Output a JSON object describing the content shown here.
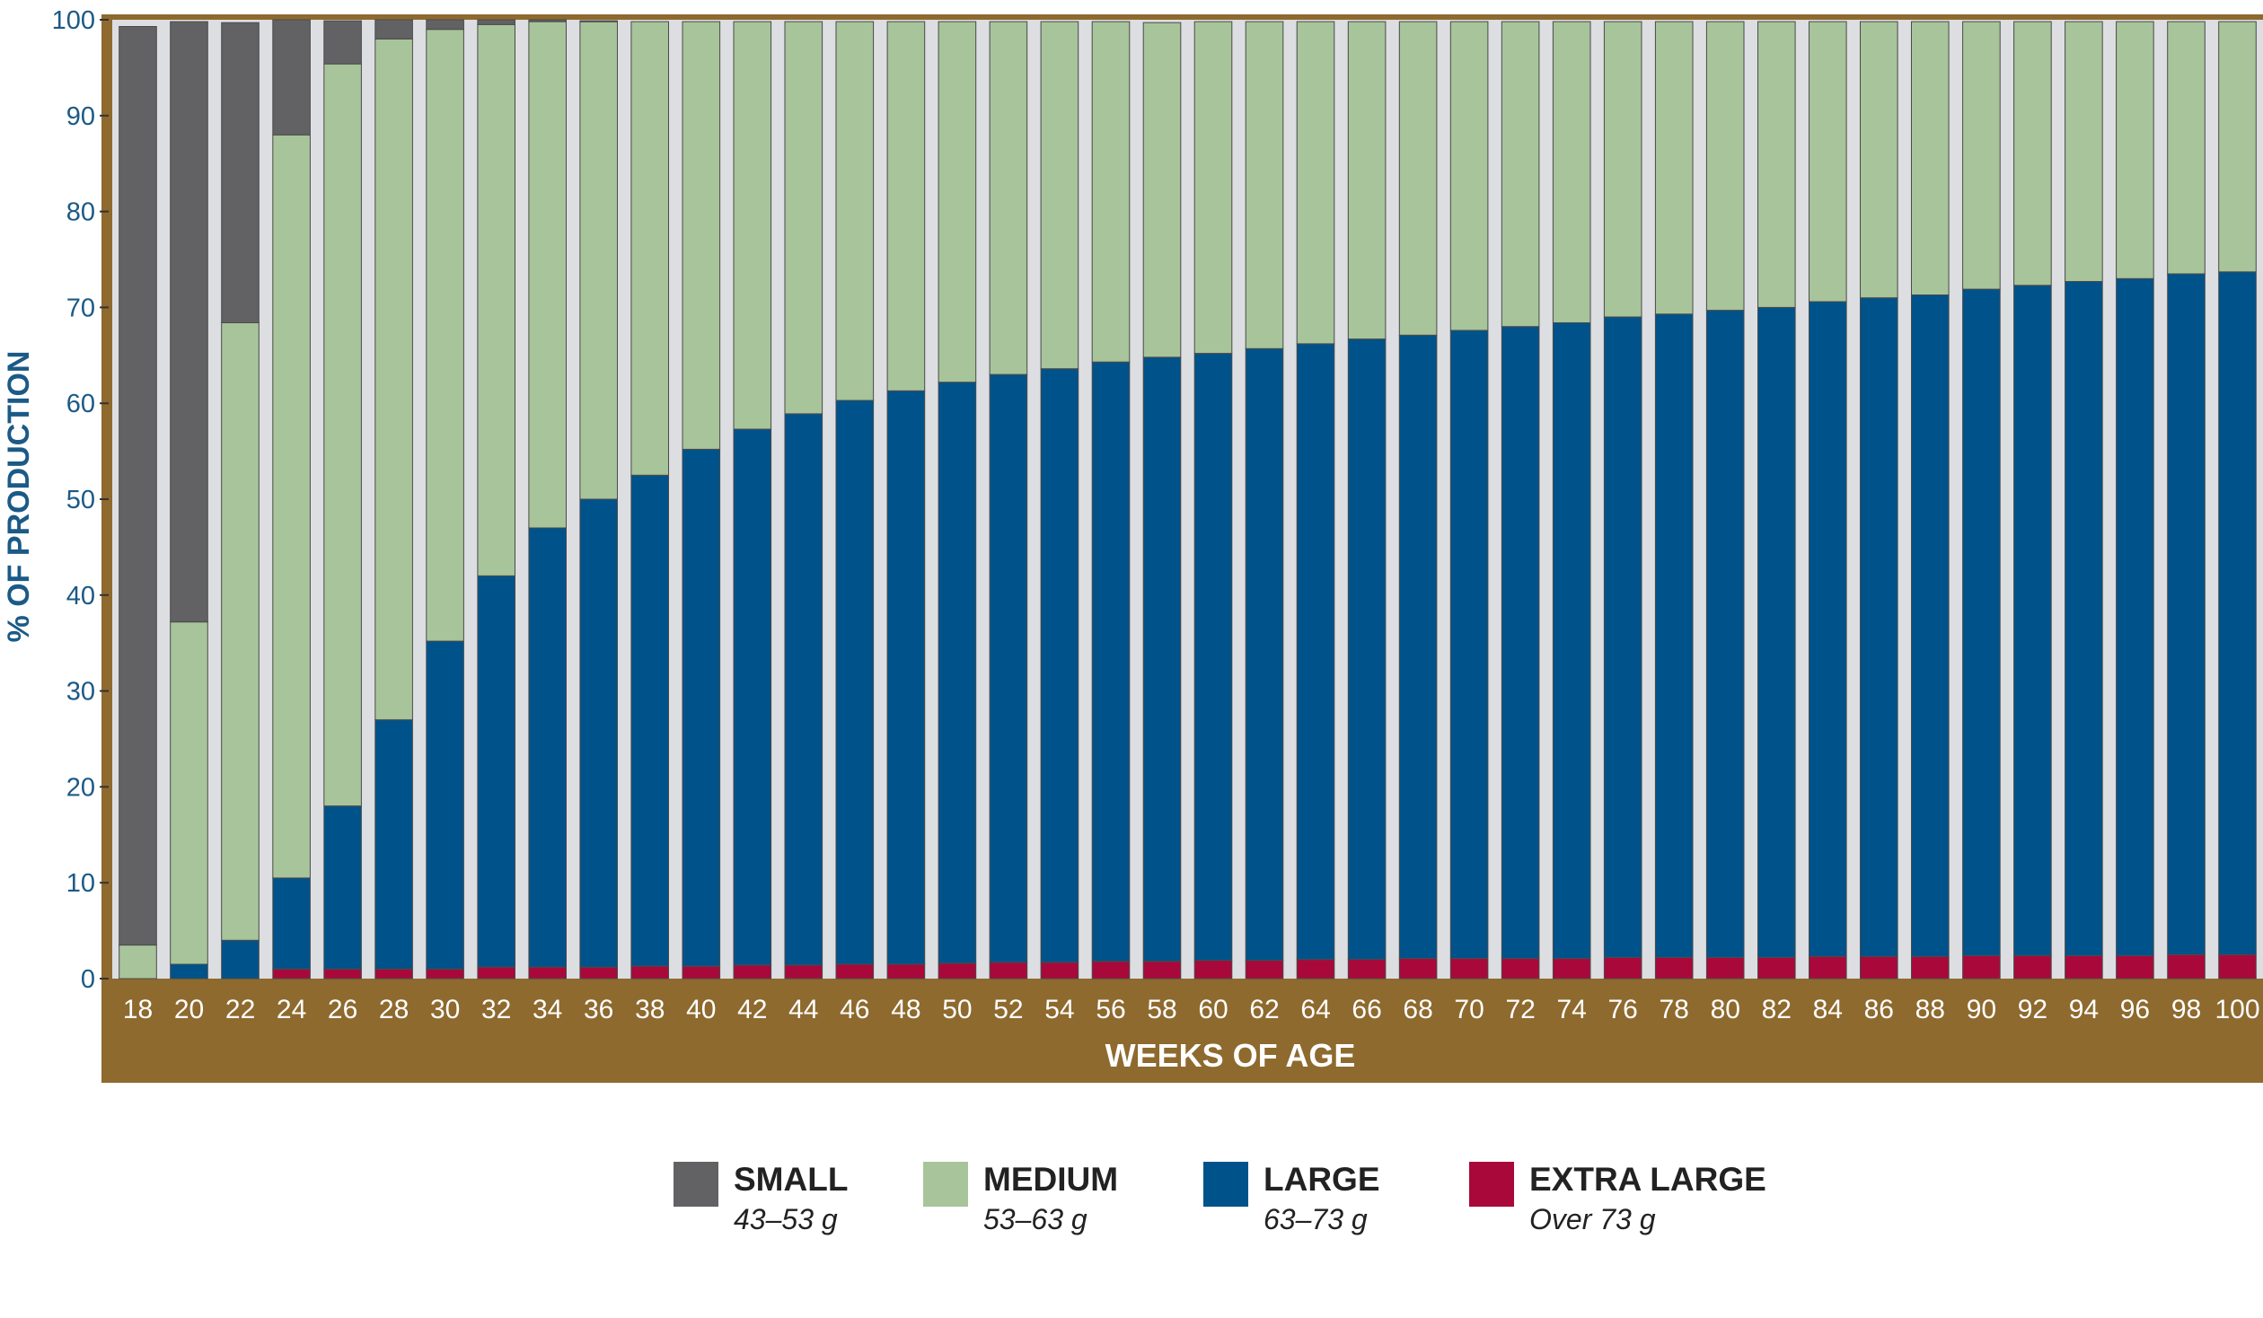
{
  "chart_data": {
    "type": "bar",
    "stacked": true,
    "title": "",
    "xlabel": "WEEKS OF AGE",
    "ylabel": "% OF PRODUCTION",
    "ylim": [
      0,
      100
    ],
    "yticks": [
      0,
      10,
      20,
      30,
      40,
      50,
      60,
      70,
      80,
      90,
      100
    ],
    "categories": [
      "18",
      "20",
      "22",
      "24",
      "26",
      "28",
      "30",
      "32",
      "34",
      "36",
      "38",
      "40",
      "42",
      "44",
      "46",
      "48",
      "50",
      "52",
      "54",
      "56",
      "58",
      "60",
      "62",
      "64",
      "66",
      "68",
      "70",
      "72",
      "74",
      "76",
      "78",
      "80",
      "82",
      "84",
      "86",
      "88",
      "90",
      "92",
      "94",
      "96",
      "98",
      "100"
    ],
    "series": [
      {
        "name": "EXTRA LARGE",
        "range": "Over 73 g",
        "color": "#a8093a",
        "values": [
          0,
          0,
          0,
          1,
          1,
          1,
          1,
          1.2,
          1.2,
          1.2,
          1.3,
          1.3,
          1.4,
          1.4,
          1.5,
          1.5,
          1.6,
          1.7,
          1.7,
          1.8,
          1.8,
          1.9,
          1.9,
          2.0,
          2.0,
          2.1,
          2.1,
          2.1,
          2.1,
          2.2,
          2.2,
          2.2,
          2.2,
          2.3,
          2.3,
          2.3,
          2.4,
          2.4,
          2.4,
          2.4,
          2.5,
          2.5
        ]
      },
      {
        "name": "LARGE",
        "range": "63–73 g",
        "color": "#00538a",
        "values": [
          0,
          1.5,
          4,
          9.5,
          17,
          26,
          34.2,
          40.8,
          45.8,
          48.8,
          51.2,
          53.9,
          55.9,
          57.5,
          58.8,
          59.8,
          60.6,
          61.3,
          61.9,
          62.5,
          63,
          63.3,
          63.8,
          64.2,
          64.7,
          65,
          65.5,
          65.9,
          66.3,
          66.8,
          67.1,
          67.5,
          67.8,
          68.3,
          68.7,
          69,
          69.5,
          69.9,
          70.3,
          70.6,
          71,
          71.2
        ]
      },
      {
        "name": "MEDIUM",
        "range": "53–63 g",
        "color": "#a8c49a",
        "values": [
          3.5,
          35.7,
          64.4,
          77.5,
          77.4,
          71,
          63.8,
          57.5,
          52.8,
          49.8,
          47.3,
          44.6,
          42.5,
          40.9,
          39.5,
          38.5,
          37.6,
          36.8,
          36.2,
          35.5,
          34.9,
          34.6,
          34.1,
          33.6,
          33.1,
          32.7,
          32.2,
          31.8,
          31.4,
          30.8,
          30.5,
          30.1,
          29.8,
          29.2,
          28.8,
          28.5,
          27.9,
          27.5,
          27.1,
          26.8,
          26.3,
          26.1
        ]
      },
      {
        "name": "SMALL",
        "range": "43–53 g",
        "color": "#626265",
        "values": [
          95.8,
          62.6,
          31.3,
          12,
          4.5,
          2,
          1,
          0.5,
          0.2,
          0.1,
          0,
          0,
          0,
          0,
          0,
          0,
          0,
          0,
          0,
          0,
          0,
          0,
          0,
          0,
          0,
          0,
          0,
          0,
          0,
          0,
          0,
          0,
          0,
          0,
          0,
          0,
          0,
          0,
          0,
          0,
          0,
          0
        ]
      }
    ]
  }
}
